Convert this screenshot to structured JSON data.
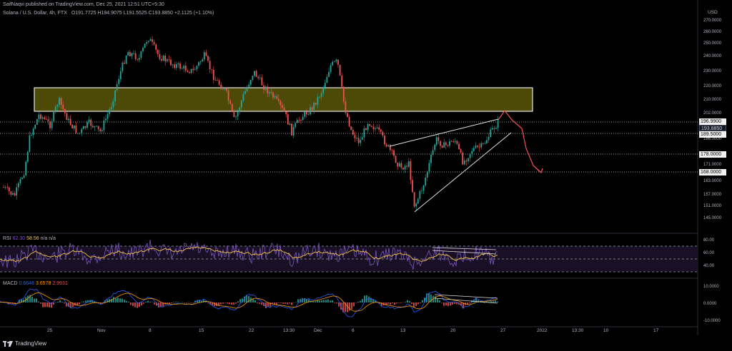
{
  "header": {
    "published_line": "SaifNaqvi published on TradingView.com, Dec 25, 2021 12:51 UTC+5:30",
    "symbol_line": "Solana / U.S. Dollar, 4h, FTX",
    "ohlc": "O191.7725 H194.9075 L191.5525 C193.8850 +2.1125 (+1.10%)",
    "currency": "USD"
  },
  "price_axis": {
    "ticks": [
      "270.0000",
      "260.0000",
      "250.0000",
      "240.0000",
      "230.0000",
      "220.0000",
      "210.0000",
      "202.0000",
      "186.0000",
      "171.0000",
      "163.0000",
      "157.0000",
      "151.0000",
      "145.0000"
    ],
    "labels": [
      {
        "text": "196.9900",
        "style": "light"
      },
      {
        "text": "193.8850",
        "style": "dark"
      },
      {
        "text": "189.5000",
        "style": "light"
      },
      {
        "text": "178.0000",
        "style": "light"
      },
      {
        "text": "168.0000",
        "style": "light"
      }
    ]
  },
  "rsi": {
    "legend_name": "RSI",
    "legend_value1": "62.30",
    "legend_value2": "58.56",
    "legend_na": "n/a  n/a",
    "ticks": [
      "80.00",
      "60.00",
      "40.00"
    ]
  },
  "macd": {
    "legend_name": "MACD",
    "legend_value1": "0.6648",
    "legend_value2": "3.6578",
    "legend_value3": "2.9931",
    "ticks": [
      "10.0000",
      "0.0000",
      "-10.0000"
    ]
  },
  "time_axis": [
    "25",
    "Nov",
    "8",
    "15",
    "22",
    "13:30",
    "Dec",
    "6",
    "13",
    "20",
    "27",
    "2022",
    "13:30",
    "10",
    "17"
  ],
  "footer": {
    "brand": "TradingView"
  },
  "colors": {
    "up": "#26a69a",
    "down": "#ef5350",
    "zone_fill": "#4d4a08",
    "zone_border": "#e6e6e6",
    "rsi_line": "#7e57c2",
    "rsi_ma": "#f4c542",
    "macd_line": "#2962ff",
    "signal_line": "#ff9800",
    "projection": "#ef5350"
  }
}
